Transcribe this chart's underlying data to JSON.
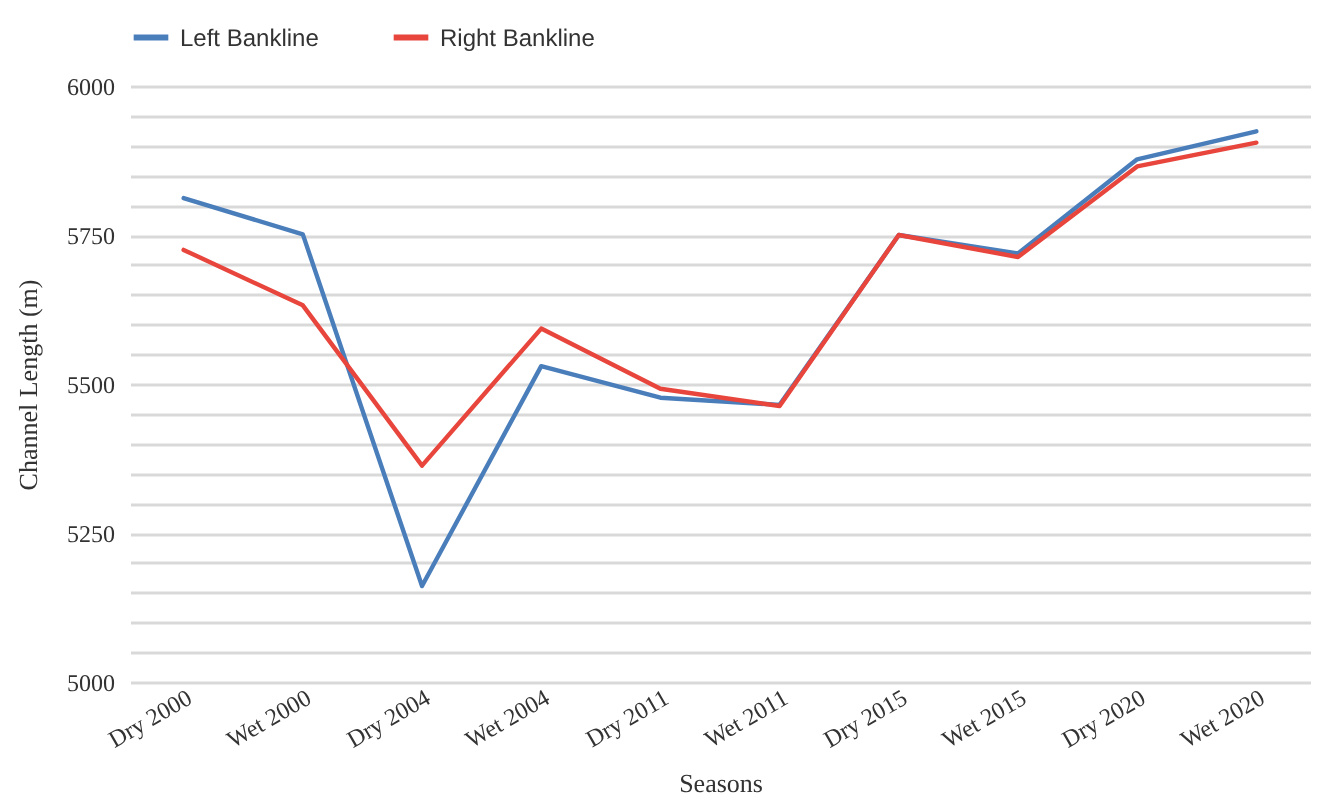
{
  "chart_data": {
    "type": "line",
    "xlabel": "Seasons",
    "ylabel": "Channel Length (m)",
    "categories": [
      "Dry 2000",
      "Wet 2000",
      "Dry 2004",
      "Wet 2004",
      "Dry 2011",
      "Wet 2011",
      "Dry 2015",
      "Wet 2015",
      "Dry 2020",
      "Wet 2020"
    ],
    "series": [
      {
        "name": "Left Bankline",
        "color": "#4a7ebb",
        "values": [
          5812,
          5751,
          5161,
          5530,
          5477,
          5465,
          5750,
          5719,
          5877,
          5924
        ]
      },
      {
        "name": "Right Bankline",
        "color": "#e8453c",
        "values": [
          5725,
          5632,
          5363,
          5593,
          5492,
          5463,
          5750,
          5713,
          5865,
          5905
        ]
      }
    ],
    "ylim": [
      5000,
      6000
    ],
    "yticks": [
      5000,
      {
        "value": 5050,
        "label": null
      },
      {
        "value": 5100,
        "label": null
      },
      {
        "value": 5150,
        "label": null
      },
      {
        "value": 5200,
        "label": null
      },
      5250,
      {
        "value": 5300,
        "label": null
      },
      {
        "value": 5350,
        "label": null
      },
      {
        "value": 5400,
        "label": null
      },
      {
        "value": 5450,
        "label": null
      },
      5500,
      {
        "value": 5550,
        "label": null
      },
      {
        "value": 5600,
        "label": null
      },
      {
        "value": 5650,
        "label": null
      },
      {
        "value": 5700,
        "label": null
      },
      5750,
      {
        "value": 5800,
        "label": null
      },
      {
        "value": 5850,
        "label": null
      },
      {
        "value": 5900,
        "label": null
      },
      {
        "value": 5950,
        "label": null
      },
      6000
    ],
    "grid": "y",
    "legend": "top"
  }
}
